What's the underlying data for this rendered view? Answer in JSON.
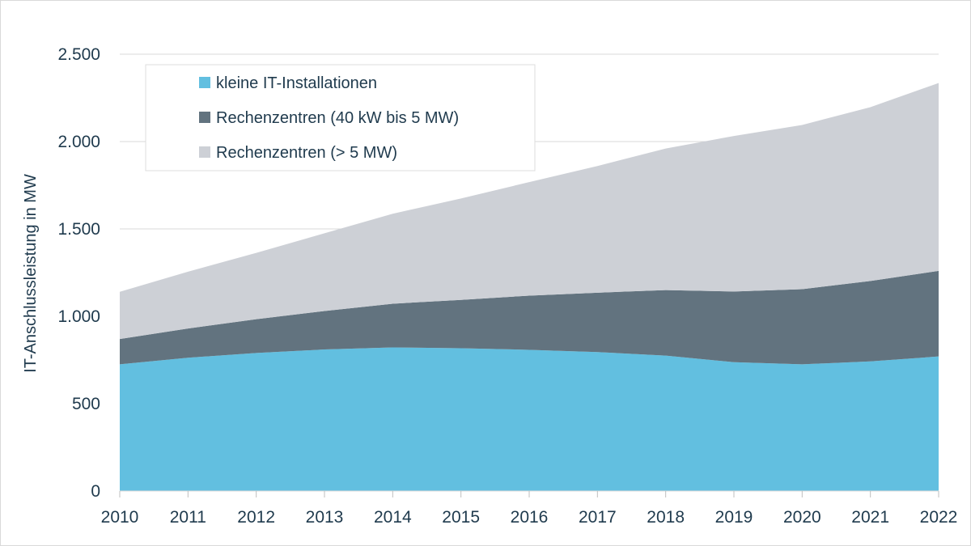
{
  "chart_data": {
    "type": "area",
    "stacked": true,
    "title": "",
    "xlabel": "",
    "ylabel": "IT-Anschlussleistung in MW",
    "x": [
      "2010",
      "2011",
      "2012",
      "2013",
      "2014",
      "2015",
      "2016",
      "2017",
      "2018",
      "2019",
      "2020",
      "2021",
      "2022"
    ],
    "ylim": [
      0,
      2500
    ],
    "yticks": [
      {
        "value": 0,
        "label": "0"
      },
      {
        "value": 500,
        "label": "500"
      },
      {
        "value": 1000,
        "label": "1.000"
      },
      {
        "value": 1500,
        "label": "1.500"
      },
      {
        "value": 2000,
        "label": "2.000"
      },
      {
        "value": 2500,
        "label": "2.500"
      }
    ],
    "grid": true,
    "legend_position": "top-left",
    "series": [
      {
        "name": "kleine IT-Installationen",
        "color": "#62bfe0",
        "values": [
          725,
          763,
          790,
          810,
          822,
          817,
          808,
          795,
          775,
          737,
          725,
          742,
          770
        ]
      },
      {
        "name": "Rechenzentren (40 kW bis 5 MW)",
        "color": "#62737f",
        "values": [
          145,
          167,
          193,
          220,
          250,
          277,
          310,
          340,
          375,
          405,
          430,
          460,
          490
        ]
      },
      {
        "name": "Rechenzentren (> 5 MW)",
        "color": "#cdd0d6",
        "values": [
          270,
          325,
          380,
          445,
          515,
          580,
          650,
          725,
          810,
          890,
          940,
          995,
          1075
        ]
      }
    ]
  }
}
